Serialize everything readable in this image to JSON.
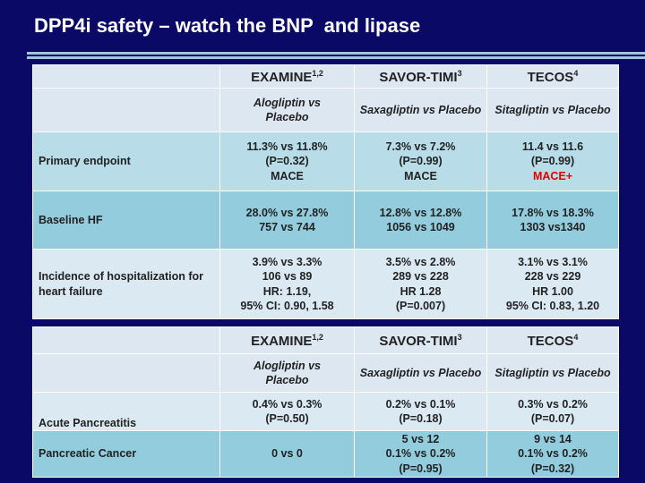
{
  "title": "DPP4i safety – watch the BNP  and lipase",
  "table1": {
    "headers": [
      {
        "label": "EXAMINE",
        "sup": "1,2"
      },
      {
        "label": "SAVOR-TIMI",
        "sup": "3"
      },
      {
        "label": "TECOS",
        "sup": "4"
      }
    ],
    "rows": [
      {
        "cells": [
          [
            "Alogliptin vs",
            "Placebo"
          ],
          [
            "Saxagliptin vs Placebo"
          ],
          [
            "Sitagliptin vs Placebo"
          ]
        ]
      },
      {
        "label": "Primary endpoint",
        "cells": [
          [
            "11.3% vs 11.8%",
            "(P=0.32)",
            "MACE"
          ],
          [
            "7.3% vs 7.2%",
            "(P=0.99)",
            "MACE"
          ],
          [
            "11.4 vs 11.6",
            "(P=0.99)",
            "MACE+"
          ]
        ]
      },
      {
        "label": "Baseline HF",
        "cells": [
          [
            "28.0% vs 27.8%",
            "757 vs 744"
          ],
          [
            "12.8% vs 12.8%",
            "1056 vs 1049"
          ],
          [
            "17.8% vs 18.3%",
            "1303 vs1340"
          ]
        ]
      },
      {
        "label": "Incidence of hospitalization for heart failure",
        "cells": [
          [
            "3.9% vs 3.3%",
            "106 vs 89",
            "HR: 1.19,",
            "95% CI: 0.90, 1.58"
          ],
          [
            "3.5% vs 2.8%",
            "289 vs 228",
            "HR 1.28",
            "(P=0.007)"
          ],
          [
            "3.1% vs 3.1%",
            "228 vs 229",
            "HR 1.00",
            "95% CI: 0.83, 1.20"
          ]
        ]
      }
    ]
  },
  "table2": {
    "headers": [
      {
        "label": "EXAMINE",
        "sup": "1,2"
      },
      {
        "label": "SAVOR-TIMI",
        "sup": "3"
      },
      {
        "label": "TECOS",
        "sup": "4"
      }
    ],
    "rows": [
      {
        "cells": [
          [
            "Alogliptin vs",
            "Placebo"
          ],
          [
            "Saxagliptin vs Placebo"
          ],
          [
            "Sitagliptin vs Placebo"
          ]
        ]
      },
      {
        "label": "Acute Pancreatitis",
        "cells": [
          [
            "0.4% vs 0.3%",
            "(P=0.50)"
          ],
          [
            "0.2% vs 0.1%",
            "(P=0.18)"
          ],
          [
            "0.3% vs 0.2%",
            "(P=0.07)"
          ]
        ]
      },
      {
        "label": "Pancreatic  Cancer",
        "cells": [
          [
            "0 vs 0"
          ],
          [
            "5 vs 12",
            "0.1% vs 0.2%",
            "(P=0.95)"
          ],
          [
            "9 vs 14",
            "0.1% vs 0.2%",
            "(P=0.32)"
          ]
        ]
      }
    ]
  }
}
